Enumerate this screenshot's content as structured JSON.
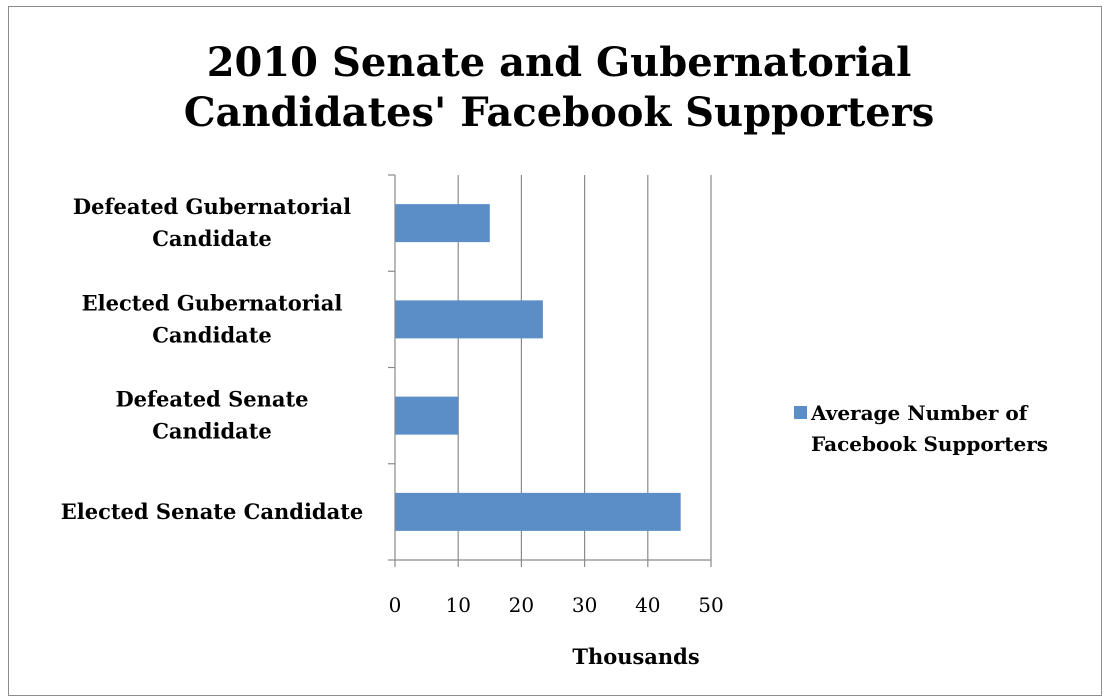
{
  "chart_data": {
    "type": "bar",
    "orientation": "horizontal",
    "title_lines": [
      "2010 Senate and Gubernatorial",
      "Candidates' Facebook Supporters"
    ],
    "categories": [
      {
        "lines": [
          "Elected Senate Candidate"
        ]
      },
      {
        "lines": [
          "Defeated Senate",
          "Candidate"
        ]
      },
      {
        "lines": [
          "Elected Gubernatorial",
          "Candidate"
        ]
      },
      {
        "lines": [
          "Defeated Gubernatorial",
          "Candidate"
        ]
      }
    ],
    "series": [
      {
        "name_lines": [
          "Average Number of",
          "Facebook Supporters"
        ],
        "color": "#5b8ec7",
        "values": [
          45.2,
          10,
          23.4,
          15
        ]
      }
    ],
    "xlabel": "Thousands",
    "xlim": [
      0,
      50
    ],
    "xticks": [
      "0",
      "10",
      "20",
      "30",
      "40",
      "50"
    ],
    "grid": "vertical major gridlines",
    "legend_position": "right"
  }
}
